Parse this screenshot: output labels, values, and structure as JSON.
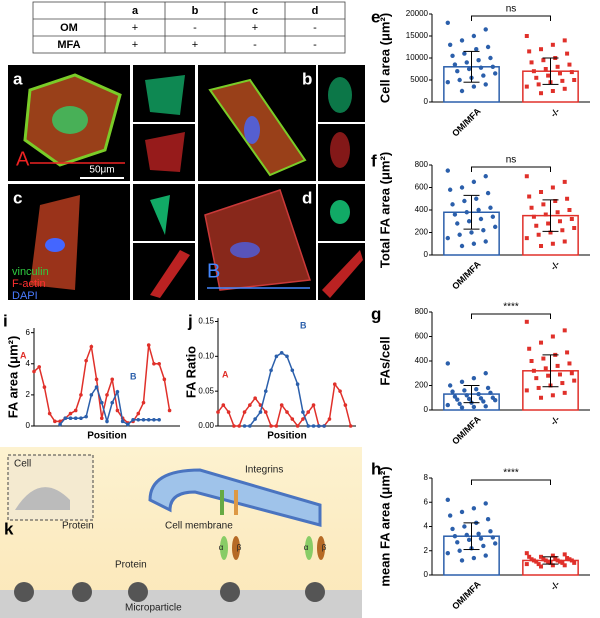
{
  "table": {
    "columns": [
      "a",
      "b",
      "c",
      "d"
    ],
    "rows": [
      {
        "label": "OM",
        "cells": [
          "+",
          "-",
          "+",
          "-"
        ]
      },
      {
        "label": "MFA",
        "cells": [
          "+",
          "+",
          "-",
          "-"
        ]
      }
    ]
  },
  "micrographs": {
    "panels": [
      "a",
      "b",
      "c",
      "d"
    ],
    "region_labels": [
      "A",
      "B"
    ],
    "scale_bar": "50μm",
    "stains": [
      {
        "name": "vinculin",
        "color": "#2ecc40"
      },
      {
        "name": "F-actin",
        "color": "#ff3030"
      },
      {
        "name": "DAPI",
        "color": "#4a7bff"
      }
    ]
  },
  "diagram": {
    "panel": "k",
    "cell": "Cell",
    "protein_inset": "Protein",
    "integrins": "Integrins",
    "membrane": "Cell membrane",
    "protein": "Protein",
    "microparticle": "Microparticle",
    "subunits": [
      "α",
      "β",
      "α",
      "β"
    ]
  },
  "chart_data": [
    {
      "type": "line",
      "panel": "i",
      "ylabel": "FA area (μm²)",
      "xlabel": "Position",
      "xlim": [
        0,
        28
      ],
      "ylim": [
        0,
        6.3
      ],
      "yticks": [
        0,
        2,
        4,
        6
      ],
      "series": [
        {
          "name": "A",
          "color": "#e0302a",
          "x": [
            0,
            1,
            2,
            3,
            4,
            5,
            6,
            7,
            8,
            9,
            10,
            11,
            12,
            13,
            14,
            15,
            16,
            17,
            18,
            19,
            20,
            21,
            22,
            23,
            24,
            25,
            26
          ],
          "values": [
            3.5,
            3.8,
            2.5,
            0.8,
            0.3,
            0.3,
            0.5,
            0.8,
            1.0,
            2.0,
            4.2,
            5.1,
            3.0,
            0.5,
            2.0,
            3.0,
            1.0,
            0.5,
            0.2,
            0.3,
            0.8,
            1.5,
            5.2,
            4.0,
            4.0,
            3.0,
            1.0
          ]
        },
        {
          "name": "B",
          "color": "#2b5fab",
          "x": [
            5,
            6,
            7,
            8,
            9,
            10,
            11,
            12,
            13,
            14,
            15,
            16,
            17,
            18,
            19,
            20,
            21,
            22,
            23,
            24
          ],
          "values": [
            0.1,
            0.5,
            0.5,
            0.5,
            0.5,
            0.6,
            2.0,
            2.5,
            1.5,
            0.3,
            1.5,
            2.2,
            0.3,
            0.1,
            0.4,
            0.4,
            0.4,
            0.4,
            0.4,
            0.4
          ]
        }
      ]
    },
    {
      "type": "line",
      "panel": "j",
      "ylabel": "FA Ratio",
      "xlabel": "Position",
      "xlim": [
        0,
        26
      ],
      "ylim": [
        0,
        0.155
      ],
      "yticks": [
        {
          "value": 0,
          "label": "0.00"
        },
        0.05,
        {
          "value": 0.1,
          "label": "0.10"
        },
        0.15
      ],
      "series": [
        {
          "name": "A",
          "color": "#e0302a",
          "x": [
            0,
            1,
            2,
            3,
            4,
            5,
            6,
            7,
            8,
            9,
            10,
            11,
            12,
            13,
            14,
            15,
            16,
            17,
            18,
            19,
            20,
            21,
            22,
            23,
            24,
            25
          ],
          "values": [
            0.02,
            0.03,
            0.02,
            0,
            0,
            0.02,
            0.03,
            0.04,
            0.03,
            0.02,
            0,
            0,
            0.03,
            0.02,
            0.01,
            0,
            0.01,
            0.02,
            0.03,
            0,
            0,
            0.01,
            0.06,
            0.05,
            0.03,
            0
          ]
        },
        {
          "name": "B",
          "color": "#2b5fab",
          "x": [
            5,
            6,
            7,
            8,
            9,
            10,
            11,
            12,
            13,
            14,
            15,
            16,
            17,
            18,
            19,
            20
          ],
          "values": [
            0,
            0,
            0.01,
            0.02,
            0.05,
            0.08,
            0.1,
            0.105,
            0.1,
            0.08,
            0.06,
            0.02,
            0,
            0,
            0,
            0
          ]
        }
      ]
    },
    {
      "type": "bar",
      "panel": "e",
      "ylabel": "Cell area (μm²)",
      "categories": [
        "OM/MFA",
        "-/-"
      ],
      "colors": [
        "#2b5fab",
        "#e0302a"
      ],
      "markers": [
        "circle",
        "square"
      ],
      "ylim": [
        0,
        20000
      ],
      "yticks": [
        0,
        5000,
        10000,
        15000,
        20000
      ],
      "significance": "ns",
      "values": [
        8000,
        7000
      ],
      "errors": [
        3500,
        3000
      ],
      "points": [
        [
          18000,
          16500,
          15000,
          14000,
          13000,
          12500,
          12000,
          11000,
          10500,
          10000,
          9500,
          9000,
          8500,
          8000,
          7800,
          7500,
          7000,
          6500,
          6000,
          5500,
          5000,
          4500,
          4000,
          3500,
          2500
        ],
        [
          15000,
          14000,
          13000,
          12000,
          11500,
          11000,
          10000,
          9500,
          9000,
          8500,
          8000,
          7500,
          7000,
          6800,
          6500,
          6000,
          5500,
          5000,
          4800,
          4500,
          4000,
          3500,
          3000,
          2500,
          2000
        ]
      ]
    },
    {
      "type": "bar",
      "panel": "f",
      "ylabel": "Total FA area (μm²)",
      "categories": [
        "OM/MFA",
        "-/-"
      ],
      "colors": [
        "#2b5fab",
        "#e0302a"
      ],
      "markers": [
        "circle",
        "square"
      ],
      "ylim": [
        0,
        800
      ],
      "yticks": [
        0,
        200,
        400,
        600,
        800
      ],
      "significance": "ns",
      "values": [
        380,
        350
      ],
      "errors": [
        150,
        140
      ],
      "points": [
        [
          750,
          700,
          650,
          600,
          580,
          550,
          500,
          480,
          450,
          420,
          400,
          380,
          360,
          340,
          320,
          300,
          280,
          250,
          220,
          200,
          180,
          150,
          120,
          100,
          80
        ],
        [
          700,
          650,
          600,
          560,
          520,
          500,
          480,
          450,
          420,
          400,
          380,
          360,
          340,
          320,
          300,
          280,
          260,
          240,
          220,
          200,
          180,
          150,
          120,
          100,
          80
        ]
      ]
    },
    {
      "type": "bar",
      "panel": "g",
      "ylabel": "FAs/cell",
      "categories": [
        "OM/MFA",
        "-/-"
      ],
      "colors": [
        "#2b5fab",
        "#e0302a"
      ],
      "markers": [
        "circle",
        "square"
      ],
      "ylim": [
        0,
        800
      ],
      "yticks": [
        0,
        200,
        400,
        600,
        800
      ],
      "significance": "****",
      "values": [
        130,
        320
      ],
      "errors": [
        70,
        130
      ],
      "points": [
        [
          380,
          300,
          260,
          230,
          200,
          180,
          170,
          160,
          150,
          140,
          130,
          120,
          110,
          100,
          95,
          90,
          85,
          80,
          70,
          60,
          50,
          40,
          30,
          25,
          20
        ],
        [
          720,
          650,
          600,
          550,
          500,
          470,
          450,
          420,
          400,
          380,
          360,
          340,
          320,
          300,
          290,
          280,
          260,
          240,
          220,
          200,
          180,
          160,
          140,
          120,
          100
        ]
      ]
    },
    {
      "type": "bar",
      "panel": "h",
      "ylabel": "mean FA area (μm²)",
      "categories": [
        "OM/MFA",
        "-/-"
      ],
      "colors": [
        "#2b5fab",
        "#e0302a"
      ],
      "markers": [
        "circle",
        "square"
      ],
      "ylim": [
        0,
        8
      ],
      "yticks": [
        0,
        2,
        4,
        6,
        8
      ],
      "significance": "****",
      "values": [
        3.2,
        1.2
      ],
      "errors": [
        1.1,
        0.3
      ],
      "points": [
        [
          6.2,
          5.9,
          5.5,
          5.2,
          4.9,
          4.6,
          4.3,
          4.0,
          3.8,
          3.6,
          3.4,
          3.3,
          3.2,
          3.1,
          3.0,
          2.9,
          2.7,
          2.6,
          2.4,
          2.2,
          2.0,
          1.8,
          1.6,
          1.4,
          1.2
        ],
        [
          1.8,
          1.7,
          1.6,
          1.5,
          1.5,
          1.4,
          1.4,
          1.3,
          1.3,
          1.3,
          1.2,
          1.2,
          1.2,
          1.2,
          1.1,
          1.1,
          1.1,
          1.0,
          1.0,
          1.0,
          0.9,
          0.9,
          0.8,
          0.8,
          0.7
        ]
      ]
    }
  ]
}
